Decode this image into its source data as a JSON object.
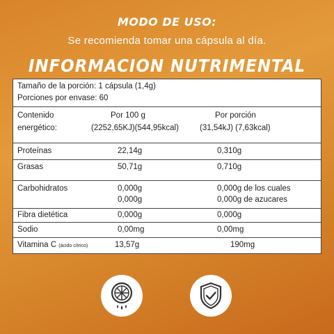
{
  "header": {
    "usage_title": "MODO DE USO:",
    "usage_text": "Se recomienda tomar una cápsula al día.",
    "table_title": "INFORMACION NUTRIMENTAL"
  },
  "portion": {
    "size": "Tamaño de la porción: 1 cápsula (1,4g)",
    "count": "Porciones por envase: 60"
  },
  "energy": {
    "label_line1": "Contenido",
    "label_line2": "energético:",
    "per100_header": "Por 100 g",
    "per100_value": "(2252,65KJ)(544,95kcal)",
    "perportion_header": "Por porción",
    "perportion_value": "(31,54kJ) (7,63kcal)"
  },
  "rows": {
    "proteinas": {
      "label": "Proteínas",
      "per100": "22,14g",
      "perportion": "0,310g"
    },
    "grasas": {
      "label": "Grasas",
      "per100": "50,71g",
      "perportion": "0,710g"
    },
    "carbohidratos": {
      "label": "Carbohidratos",
      "per100_a": "0,000g",
      "per100_b": "0,000g",
      "perportion_a": "0,000g de los cuales",
      "perportion_b": "0,000g de azucares"
    },
    "fibra": {
      "label": "Fibra dietética",
      "per100": "0,000g",
      "perportion": "0,000g"
    },
    "sodio": {
      "label": "Sodio",
      "per100": "0,00mg",
      "perportion": "0,00mg"
    },
    "vitamina": {
      "label": "Vitamina C",
      "note": "(ácido cítrico)",
      "per100": "13,57g",
      "perportion": "190mg"
    }
  },
  "icons": [
    "orange-slice-drops-icon",
    "shield-check-icon"
  ],
  "colors": {
    "background": "#d9842a",
    "text_light": "#ffffff",
    "table_bg": "#ffffff",
    "icon_dark": "#333333"
  }
}
